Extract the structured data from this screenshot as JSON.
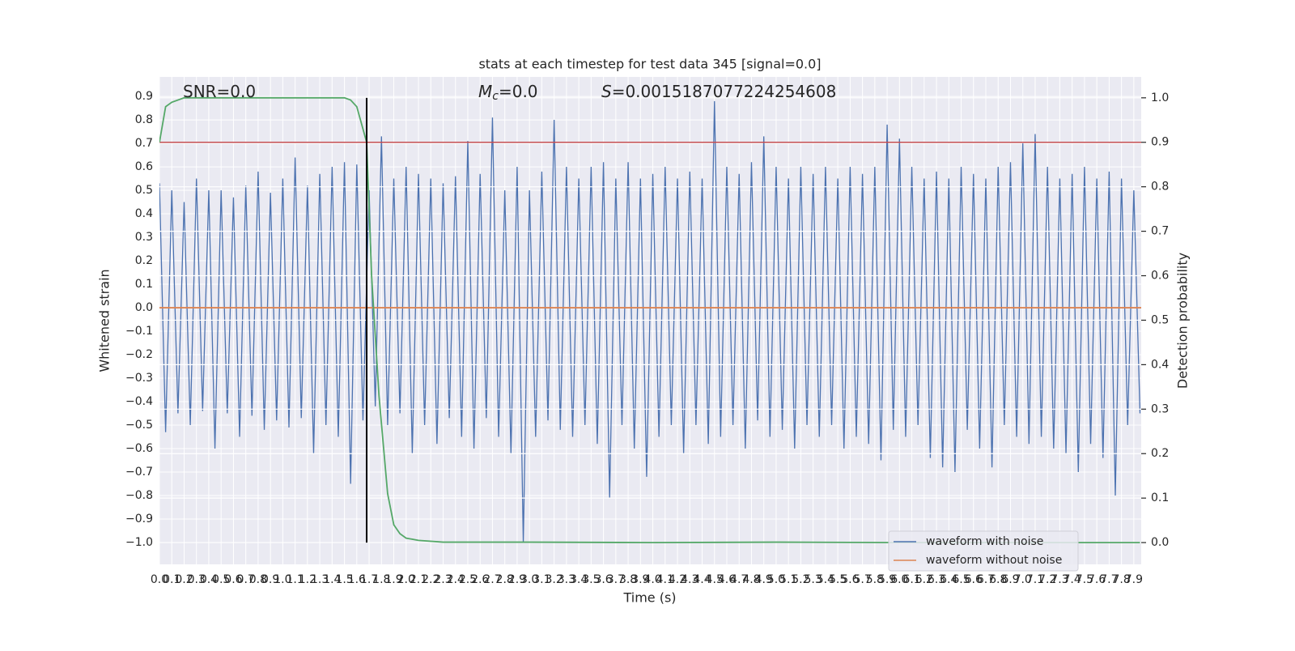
{
  "chart_data": {
    "type": "line",
    "title": "stats at each timestep for test data 345 [signal=0.0]",
    "xlabel": "Time (s)",
    "ylabel": "Whitened strain",
    "y2label": "Detection probability",
    "annotations": [
      {
        "text": "SNR=0.0"
      },
      {
        "symbol": "M",
        "subscript": "c",
        "text": "=0.0"
      },
      {
        "symbol": "S",
        "text": "=0.0015187077224254608"
      }
    ],
    "xlim": [
      0,
      7.96
    ],
    "ylim": [
      -1.093,
      0.983
    ],
    "y2lim": [
      -0.049,
      1.047
    ],
    "grid": true,
    "legend": "lower right",
    "xticks": [
      {
        "value": 0,
        "label": "0.0"
      },
      0.1,
      0.2,
      0.3,
      0.4,
      0.5,
      0.6,
      0.7,
      0.8,
      0.9,
      {
        "value": 1,
        "label": "1.0"
      },
      1.1,
      1.2,
      1.3,
      1.4,
      1.5,
      1.6,
      1.7,
      1.8,
      1.9,
      {
        "value": 2,
        "label": "2.0"
      },
      2.1,
      2.2,
      2.3,
      2.4,
      2.5,
      2.6,
      2.7,
      2.8,
      2.9,
      {
        "value": 3,
        "label": "3.0"
      },
      3.1,
      3.2,
      3.3,
      3.4,
      3.5,
      3.6,
      3.7,
      3.8,
      3.9,
      {
        "value": 4,
        "label": "4.0"
      },
      4.1,
      4.2,
      4.3,
      4.4,
      4.5,
      4.6,
      4.7,
      4.8,
      4.9,
      {
        "value": 5,
        "label": "5.0"
      },
      5.1,
      5.2,
      5.3,
      5.4,
      5.5,
      5.6,
      5.7,
      5.8,
      5.9,
      {
        "value": 6,
        "label": "6.0"
      },
      6.1,
      6.2,
      6.3,
      6.4,
      6.5,
      6.6,
      6.7,
      6.8,
      6.9,
      {
        "value": 7,
        "label": "7.0"
      },
      7.1,
      7.2,
      7.3,
      7.4,
      7.5,
      7.6,
      7.7,
      7.8,
      7.9
    ],
    "yticks": [
      {
        "value": -1.0,
        "label": "−1.0"
      },
      {
        "value": -0.9,
        "label": "−0.9"
      },
      {
        "value": -0.8,
        "label": "−0.8"
      },
      {
        "value": -0.7,
        "label": "−0.7"
      },
      {
        "value": -0.6,
        "label": "−0.6"
      },
      {
        "value": -0.5,
        "label": "−0.5"
      },
      {
        "value": -0.4,
        "label": "−0.4"
      },
      {
        "value": -0.3,
        "label": "−0.3"
      },
      {
        "value": -0.2,
        "label": "−0.2"
      },
      {
        "value": -0.1,
        "label": "−0.1"
      },
      {
        "value": 0,
        "label": "0.0"
      },
      0.1,
      0.2,
      0.3,
      0.4,
      0.5,
      0.6,
      0.7,
      0.8,
      0.9
    ],
    "y2ticks": [
      {
        "value": 0,
        "label": "0.0"
      },
      0.1,
      0.2,
      0.3,
      0.4,
      0.5,
      0.6,
      0.7,
      0.8,
      0.9,
      {
        "value": 1,
        "label": "1.0"
      }
    ],
    "series": [
      {
        "name": "waveform with noise",
        "color": "#4c72b0",
        "x": [
          0,
          0.05,
          0.1,
          0.15,
          0.2,
          0.25,
          0.3,
          0.35,
          0.4,
          0.45,
          0.5,
          0.55,
          0.6,
          0.65,
          0.7,
          0.75,
          0.8,
          0.85,
          0.9,
          0.95,
          1,
          1.05,
          1.1,
          1.15,
          1.2,
          1.25,
          1.3,
          1.35,
          1.4,
          1.45,
          1.5,
          1.55,
          1.6,
          1.65,
          1.7,
          1.75,
          1.8,
          1.85,
          1.9,
          1.95,
          2,
          2.05,
          2.1,
          2.15,
          2.2,
          2.25,
          2.3,
          2.35,
          2.4,
          2.45,
          2.5,
          2.55,
          2.6,
          2.65,
          2.7,
          2.75,
          2.8,
          2.85,
          2.9,
          2.95,
          3,
          3.05,
          3.1,
          3.15,
          3.2,
          3.25,
          3.3,
          3.35,
          3.4,
          3.45,
          3.5,
          3.55,
          3.6,
          3.65,
          3.7,
          3.75,
          3.8,
          3.85,
          3.9,
          3.95,
          4,
          4.05,
          4.1,
          4.15,
          4.2,
          4.25,
          4.3,
          4.35,
          4.4,
          4.45,
          4.5,
          4.55,
          4.6,
          4.65,
          4.7,
          4.75,
          4.8,
          4.85,
          4.9,
          4.95,
          5,
          5.05,
          5.1,
          5.15,
          5.2,
          5.25,
          5.3,
          5.35,
          5.4,
          5.45,
          5.5,
          5.55,
          5.6,
          5.65,
          5.7,
          5.75,
          5.8,
          5.85,
          5.9,
          5.95,
          6,
          6.05,
          6.1,
          6.15,
          6.2,
          6.25,
          6.3,
          6.35,
          6.4,
          6.45,
          6.5,
          6.55,
          6.6,
          6.65,
          6.7,
          6.75,
          6.8,
          6.85,
          6.9,
          6.95,
          7,
          7.05,
          7.1,
          7.15,
          7.2,
          7.25,
          7.3,
          7.35,
          7.4,
          7.45,
          7.5,
          7.55,
          7.6,
          7.65,
          7.7,
          7.75,
          7.8,
          7.85,
          7.9,
          7.95
        ],
        "values": [
          0.53,
          -0.53,
          0.5,
          -0.45,
          0.45,
          -0.5,
          0.55,
          -0.44,
          0.5,
          -0.6,
          0.5,
          -0.45,
          0.47,
          -0.55,
          0.52,
          -0.46,
          0.58,
          -0.52,
          0.49,
          -0.48,
          0.55,
          -0.51,
          0.64,
          -0.47,
          0.52,
          -0.62,
          0.57,
          -0.5,
          0.6,
          -0.55,
          0.62,
          -0.75,
          0.61,
          -0.48,
          0.5,
          -0.42,
          0.73,
          -0.5,
          0.55,
          -0.45,
          0.6,
          -0.62,
          0.57,
          -0.5,
          0.55,
          -0.58,
          0.53,
          -0.47,
          0.56,
          -0.55,
          0.71,
          -0.6,
          0.57,
          -0.47,
          0.81,
          -0.55,
          0.5,
          -0.62,
          0.6,
          -1.0,
          0.5,
          -0.55,
          0.58,
          -0.48,
          0.8,
          -0.52,
          0.6,
          -0.55,
          0.55,
          -0.5,
          0.6,
          -0.58,
          0.62,
          -0.81,
          0.55,
          -0.5,
          0.62,
          -0.6,
          0.55,
          -0.72,
          0.57,
          -0.55,
          0.6,
          -0.5,
          0.55,
          -0.62,
          0.58,
          -0.5,
          0.55,
          -0.58,
          0.88,
          -0.55,
          0.6,
          -0.5,
          0.57,
          -0.6,
          0.62,
          -0.48,
          0.73,
          -0.55,
          0.6,
          -0.52,
          0.55,
          -0.6,
          0.6,
          -0.5,
          0.57,
          -0.55,
          0.6,
          -0.5,
          0.55,
          -0.6,
          0.6,
          -0.55,
          0.57,
          -0.58,
          0.6,
          -0.65,
          0.78,
          -0.52,
          0.72,
          -0.55,
          0.6,
          -0.5,
          0.55,
          -0.64,
          0.58,
          -0.68,
          0.55,
          -0.7,
          0.6,
          -0.52,
          0.57,
          -0.6,
          0.55,
          -0.68,
          0.6,
          -0.5,
          0.62,
          -0.55,
          0.7,
          -0.58,
          0.74,
          -0.55,
          0.6,
          -0.6,
          0.55,
          -0.62,
          0.57,
          -0.7,
          0.6,
          -0.58,
          0.55,
          -0.64,
          0.58,
          -0.8,
          0.55,
          -0.5,
          0.5,
          -0.45
        ]
      },
      {
        "name": "waveform without noise",
        "color": "#dd8452",
        "x": [
          0,
          7.96
        ],
        "values": [
          0,
          0
        ]
      }
    ],
    "probability": {
      "color": "#55a868",
      "axis": "y2",
      "x": [
        0,
        0.05,
        0.1,
        0.2,
        0.5,
        1.0,
        1.5,
        1.55,
        1.6,
        1.65,
        1.68,
        1.72,
        1.78,
        1.85,
        1.9,
        1.95,
        2.0,
        2.1,
        2.3,
        3.0,
        4.0,
        5.0,
        6.0,
        7.0,
        7.95
      ],
      "values": [
        0.9,
        0.98,
        0.99,
        1.0,
        1.0,
        1.0,
        1.0,
        0.995,
        0.98,
        0.93,
        0.9,
        0.6,
        0.33,
        0.11,
        0.04,
        0.02,
        0.01,
        0.005,
        0.001,
        0.001,
        0.0,
        0.001,
        0.0,
        0.0,
        0.0
      ]
    },
    "threshold": {
      "color": "#c44e52",
      "value": 0.9,
      "axis": "y2"
    },
    "marker_x": {
      "color": "#000000",
      "value": 1.68
    }
  }
}
